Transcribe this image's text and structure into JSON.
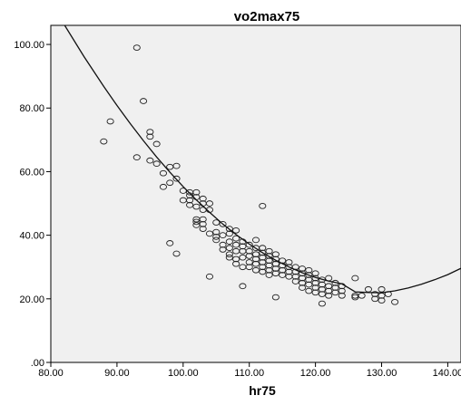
{
  "chart_data": {
    "type": "scatter",
    "title": "vo2max75",
    "xlabel": "hr75",
    "ylabel": "",
    "xlim": [
      80,
      142
    ],
    "ylim": [
      0,
      106
    ],
    "xticks": [
      "80.00",
      "90.00",
      "100.00",
      "110.00",
      "120.00",
      "130.00",
      "140.00"
    ],
    "xtick_values": [
      80,
      90,
      100,
      110,
      120,
      130,
      140
    ],
    "yticks": [
      ".00",
      "20.00",
      "40.00",
      "60.00",
      "80.00",
      "100.00"
    ],
    "ytick_values": [
      0,
      20,
      40,
      60,
      80,
      100
    ],
    "grid": false,
    "legend": "none",
    "colors": {
      "plot_bg": "#f0f0f0",
      "marker_stroke": "#222222",
      "curve": "#111111"
    },
    "fit": {
      "type": "quadratic",
      "x": [
        82.1,
        85,
        88,
        90,
        92,
        94,
        96,
        98,
        100,
        102,
        104,
        106,
        108,
        110,
        112,
        114,
        116,
        118,
        120,
        122,
        124,
        126,
        128,
        130,
        132,
        134,
        136,
        138,
        140,
        142
      ],
      "y": [
        106,
        96.2,
        86.8,
        80.8,
        75.1,
        69.7,
        64.6,
        59.8,
        55.3,
        51.1,
        47.2,
        43.5,
        40.2,
        37.2,
        34.5,
        32.1,
        30.0,
        28.2,
        26.7,
        25.6,
        24.7,
        22.2,
        22.0,
        21.9,
        22.5,
        23.4,
        24.6,
        26.0,
        27.6,
        29.6
      ]
    },
    "points": [
      [
        88,
        69.5
      ],
      [
        89,
        75.8
      ],
      [
        93,
        99
      ],
      [
        94,
        82.2
      ],
      [
        93,
        64.5
      ],
      [
        95,
        72.5
      ],
      [
        95,
        71
      ],
      [
        95,
        63.5
      ],
      [
        96,
        68.7
      ],
      [
        96,
        62.5
      ],
      [
        97,
        59.5
      ],
      [
        97,
        55.2
      ],
      [
        98,
        61.5
      ],
      [
        98,
        56.5
      ],
      [
        99,
        61.8
      ],
      [
        99,
        57.8
      ],
      [
        98,
        37.5
      ],
      [
        99,
        34.2
      ],
      [
        100,
        51
      ],
      [
        100,
        54
      ],
      [
        101,
        53.5
      ],
      [
        101,
        52.5
      ],
      [
        101,
        51
      ],
      [
        101,
        49.5
      ],
      [
        102,
        53.5
      ],
      [
        102,
        52
      ],
      [
        102,
        49
      ],
      [
        102,
        45
      ],
      [
        102,
        44.2
      ],
      [
        102,
        43.2
      ],
      [
        103,
        51.5
      ],
      [
        103,
        50
      ],
      [
        103,
        48
      ],
      [
        103,
        45
      ],
      [
        103,
        43.5
      ],
      [
        103,
        42
      ],
      [
        104,
        50
      ],
      [
        104,
        48
      ],
      [
        104,
        40.5
      ],
      [
        104,
        27
      ],
      [
        105,
        44
      ],
      [
        105,
        41
      ],
      [
        105,
        39.5
      ],
      [
        105,
        38.5
      ],
      [
        106,
        43.5
      ],
      [
        106,
        40
      ],
      [
        106,
        37
      ],
      [
        106,
        35.5
      ],
      [
        107,
        42
      ],
      [
        107,
        40.5
      ],
      [
        107,
        38
      ],
      [
        107,
        36
      ],
      [
        107,
        34
      ],
      [
        107,
        33
      ],
      [
        108,
        41.5
      ],
      [
        108,
        39
      ],
      [
        108,
        37
      ],
      [
        108,
        35
      ],
      [
        108,
        32.5
      ],
      [
        108,
        31
      ],
      [
        109,
        38
      ],
      [
        109,
        36.5
      ],
      [
        109,
        35
      ],
      [
        109,
        33
      ],
      [
        109,
        30
      ],
      [
        109,
        24
      ],
      [
        110,
        37
      ],
      [
        110,
        35
      ],
      [
        110,
        33.5
      ],
      [
        110,
        31.5
      ],
      [
        110,
        30
      ],
      [
        111,
        38.5
      ],
      [
        111,
        36
      ],
      [
        111,
        34
      ],
      [
        111,
        32.5
      ],
      [
        111,
        31
      ],
      [
        111,
        29
      ],
      [
        112,
        49.2
      ],
      [
        112,
        36
      ],
      [
        112,
        34.5
      ],
      [
        112,
        33
      ],
      [
        112,
        31.5
      ],
      [
        112,
        30
      ],
      [
        112,
        28.5
      ],
      [
        113,
        35
      ],
      [
        113,
        33.5
      ],
      [
        113,
        32
      ],
      [
        113,
        30.5
      ],
      [
        113,
        29
      ],
      [
        113,
        27.5
      ],
      [
        114,
        34
      ],
      [
        114,
        32.5
      ],
      [
        114,
        31
      ],
      [
        114,
        29.5
      ],
      [
        114,
        28
      ],
      [
        114,
        20.5
      ],
      [
        115,
        32
      ],
      [
        115,
        30.5
      ],
      [
        115,
        29
      ],
      [
        115,
        27.5
      ],
      [
        116,
        31.5
      ],
      [
        116,
        30
      ],
      [
        116,
        28.5
      ],
      [
        116,
        27
      ],
      [
        117,
        30
      ],
      [
        117,
        28.5
      ],
      [
        117,
        27
      ],
      [
        117,
        25.5
      ],
      [
        118,
        29.5
      ],
      [
        118,
        28
      ],
      [
        118,
        26.5
      ],
      [
        118,
        25
      ],
      [
        118,
        23.5
      ],
      [
        119,
        29
      ],
      [
        119,
        27.5
      ],
      [
        119,
        26
      ],
      [
        119,
        24.5
      ],
      [
        119,
        22.5
      ],
      [
        120,
        28
      ],
      [
        120,
        26.5
      ],
      [
        120,
        25
      ],
      [
        120,
        23.5
      ],
      [
        120,
        22
      ],
      [
        121,
        26
      ],
      [
        121,
        24.5
      ],
      [
        121,
        23
      ],
      [
        121,
        21.5
      ],
      [
        121,
        18.5
      ],
      [
        122,
        26.5
      ],
      [
        122,
        24
      ],
      [
        122,
        22.5
      ],
      [
        122,
        21
      ],
      [
        123,
        25
      ],
      [
        123,
        23.5
      ],
      [
        123,
        22
      ],
      [
        124,
        24
      ],
      [
        124,
        22.5
      ],
      [
        124,
        21
      ],
      [
        126,
        26.5
      ],
      [
        126,
        21
      ],
      [
        126,
        20.5
      ],
      [
        127,
        21
      ],
      [
        128,
        23
      ],
      [
        129,
        21.5
      ],
      [
        129,
        20
      ],
      [
        130,
        23
      ],
      [
        130,
        21
      ],
      [
        130,
        19.5
      ],
      [
        131,
        21.5
      ],
      [
        132,
        19
      ]
    ]
  }
}
